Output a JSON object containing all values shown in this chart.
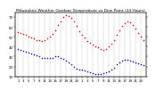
{
  "title": "Milwaukee Weather Outdoor Temperature vs Dew Point (24 Hours)",
  "title_fontsize": 3.2,
  "background_color": "#ffffff",
  "temp_color": "#cc0000",
  "dew_color": "#0000bb",
  "temp_x": [
    1,
    2,
    3,
    4,
    5,
    6,
    7,
    8,
    9,
    10,
    11,
    12,
    13,
    14,
    15,
    16,
    17,
    18,
    19,
    20,
    21,
    22,
    23,
    24,
    25,
    26,
    27,
    28,
    29,
    30,
    31,
    32,
    33,
    34,
    35,
    36,
    37,
    38,
    39,
    40,
    41,
    42,
    43,
    44,
    45,
    46,
    47,
    48
  ],
  "temp_y": [
    55,
    54,
    53,
    52,
    50,
    49,
    48,
    47,
    47,
    46,
    47,
    48,
    50,
    53,
    57,
    62,
    66,
    70,
    72,
    71,
    69,
    66,
    61,
    56,
    52,
    49,
    46,
    44,
    42,
    40,
    39,
    38,
    37,
    38,
    40,
    43,
    47,
    52,
    57,
    61,
    64,
    66,
    65,
    62,
    58,
    54,
    50,
    47
  ],
  "dew_x": [
    1,
    2,
    3,
    4,
    5,
    6,
    7,
    8,
    9,
    10,
    11,
    12,
    13,
    14,
    15,
    16,
    17,
    18,
    19,
    20,
    21,
    22,
    23,
    24,
    25,
    26,
    27,
    28,
    29,
    30,
    31,
    32,
    33,
    34,
    35,
    36,
    37,
    38,
    39,
    40,
    41,
    42,
    43,
    44,
    45,
    46,
    47,
    48
  ],
  "dew_y": [
    38,
    37,
    36,
    35,
    34,
    33,
    32,
    31,
    30,
    29,
    29,
    29,
    29,
    29,
    30,
    30,
    29,
    28,
    26,
    24,
    22,
    20,
    18,
    17,
    17,
    16,
    15,
    14,
    13,
    12,
    12,
    12,
    13,
    14,
    15,
    17,
    19,
    22,
    24,
    26,
    27,
    27,
    26,
    25,
    24,
    23,
    22,
    21
  ],
  "ylim": [
    10,
    75
  ],
  "xlim": [
    0,
    49
  ],
  "yticks": [
    10,
    20,
    30,
    40,
    50,
    60,
    70
  ],
  "xticks": [
    1,
    3,
    5,
    7,
    9,
    11,
    13,
    15,
    17,
    19,
    21,
    23,
    25,
    27,
    29,
    31,
    33,
    35,
    37,
    39,
    41,
    43,
    45,
    47
  ],
  "tick_fontsize": 2.8,
  "grid_color": "#999999",
  "marker_size": 1.2
}
